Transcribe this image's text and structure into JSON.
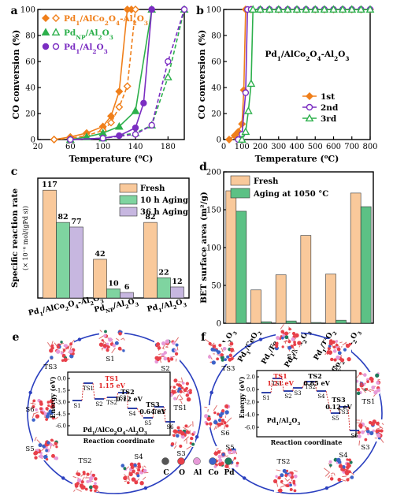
{
  "chart_data": [
    {
      "panel": "a",
      "type": "line",
      "xlabel": "Temperature (°C)",
      "ylabel": "CO conversion (%)",
      "xlim": [
        20,
        200
      ],
      "ylim": [
        0,
        100
      ],
      "xticks": [
        20,
        60,
        100,
        140,
        180
      ],
      "yticks": [
        0,
        20,
        40,
        60,
        80,
        100
      ],
      "legend": [
        {
          "name": "Pd1/AlCo2O4-Al2O3",
          "color": "#f07f1a"
        },
        {
          "name": "PdNP/Al2O3",
          "color": "#2db04c"
        },
        {
          "name": "Pd1/Al2O3",
          "color": "#7b2ec2"
        }
      ],
      "series": [
        {
          "name": "Pd1/AlCo2O4-Al2O3",
          "mode": "solid",
          "color": "#f07f1a",
          "marker": "diamond",
          "points": [
            [
              40,
              0
            ],
            [
              60,
              2
            ],
            [
              80,
              5
            ],
            [
              100,
              10
            ],
            [
              110,
              18
            ],
            [
              120,
              37
            ],
            [
              130,
              100
            ],
            [
              135,
              100
            ]
          ]
        },
        {
          "name": "Pd1/AlCo2O4-Al2O3",
          "mode": "dashed",
          "color": "#f07f1a",
          "marker": "diamond-open",
          "points": [
            [
              40,
              0
            ],
            [
              60,
              1
            ],
            [
              80,
              3
            ],
            [
              100,
              7
            ],
            [
              110,
              13
            ],
            [
              120,
              25
            ],
            [
              130,
              41
            ],
            [
              140,
              100
            ]
          ]
        },
        {
          "name": "PdNP/Al2O3",
          "mode": "solid",
          "color": "#2db04c",
          "marker": "triangle",
          "points": [
            [
              60,
              0
            ],
            [
              80,
              2
            ],
            [
              100,
              5
            ],
            [
              120,
              10
            ],
            [
              140,
              22
            ],
            [
              160,
              100
            ]
          ]
        },
        {
          "name": "PdNP/Al2O3",
          "mode": "dashed",
          "color": "#2db04c",
          "marker": "triangle-open",
          "points": [
            [
              60,
              0
            ],
            [
              100,
              1
            ],
            [
              140,
              5
            ],
            [
              160,
              11
            ],
            [
              180,
              48
            ],
            [
              200,
              100
            ]
          ]
        },
        {
          "name": "Pd1/Al2O3",
          "mode": "solid",
          "color": "#7b2ec2",
          "marker": "circle",
          "points": [
            [
              60,
              0
            ],
            [
              100,
              1
            ],
            [
              120,
              3
            ],
            [
              140,
              9
            ],
            [
              150,
              28
            ],
            [
              160,
              100
            ]
          ]
        },
        {
          "name": "Pd1/Al2O3",
          "mode": "dashed",
          "color": "#7b2ec2",
          "marker": "circle-open",
          "points": [
            [
              60,
              0
            ],
            [
              100,
              1
            ],
            [
              140,
              4
            ],
            [
              160,
              11
            ],
            [
              180,
              60
            ],
            [
              200,
              100
            ]
          ]
        }
      ]
    },
    {
      "panel": "b",
      "type": "line",
      "title": "Pd1/AlCo2O4-Al2O3",
      "xlabel": "Temperature (°C)",
      "ylabel": "CO conversion (%)",
      "xlim": [
        0,
        800
      ],
      "ylim": [
        0,
        100
      ],
      "xticks": [
        0,
        100,
        200,
        300,
        400,
        500,
        600,
        700,
        800
      ],
      "yticks": [
        0,
        20,
        40,
        60,
        80,
        100
      ],
      "legend": [
        {
          "name": "1st",
          "color": "#f07f1a"
        },
        {
          "name": "2nd",
          "color": "#7b2ec2"
        },
        {
          "name": "3rd",
          "color": "#2db04c"
        }
      ],
      "series": [
        {
          "name": "1st",
          "color": "#f07f1a",
          "marker": "diamond",
          "points": [
            [
              30,
              0
            ],
            [
              60,
              3
            ],
            [
              80,
              6
            ],
            [
              100,
              12
            ],
            [
              110,
              38
            ],
            [
              120,
              100
            ],
            [
              150,
              100
            ],
            [
              200,
              100
            ],
            [
              250,
              100
            ],
            [
              300,
              100
            ],
            [
              350,
              100
            ],
            [
              400,
              100
            ],
            [
              450,
              100
            ],
            [
              500,
              100
            ],
            [
              550,
              100
            ],
            [
              600,
              100
            ],
            [
              650,
              100
            ],
            [
              700,
              100
            ],
            [
              750,
              100
            ],
            [
              800,
              100
            ]
          ]
        },
        {
          "name": "2nd",
          "color": "#7b2ec2",
          "marker": "circle-open",
          "points": [
            [
              80,
              0
            ],
            [
              100,
              4
            ],
            [
              120,
              36
            ],
            [
              130,
              100
            ],
            [
              150,
              100
            ],
            [
              200,
              100
            ],
            [
              250,
              100
            ],
            [
              300,
              100
            ],
            [
              350,
              100
            ],
            [
              400,
              100
            ],
            [
              450,
              100
            ],
            [
              500,
              100
            ],
            [
              550,
              100
            ],
            [
              600,
              100
            ],
            [
              650,
              100
            ],
            [
              700,
              100
            ],
            [
              750,
              100
            ],
            [
              800,
              100
            ]
          ]
        },
        {
          "name": "3rd",
          "color": "#2db04c",
          "marker": "triangle-open",
          "points": [
            [
              100,
              0
            ],
            [
              120,
              6
            ],
            [
              135,
              22
            ],
            [
              150,
              43
            ],
            [
              160,
              100
            ],
            [
              200,
              100
            ],
            [
              250,
              100
            ],
            [
              300,
              100
            ],
            [
              350,
              100
            ],
            [
              400,
              100
            ],
            [
              450,
              100
            ],
            [
              500,
              100
            ],
            [
              550,
              100
            ],
            [
              600,
              100
            ],
            [
              650,
              100
            ],
            [
              700,
              100
            ],
            [
              750,
              100
            ],
            [
              800,
              100
            ]
          ]
        }
      ]
    },
    {
      "panel": "c",
      "type": "bar",
      "ylabel": "Specific reaction rate",
      "yunit": "(× 10⁻⁶ mol/(gPd s))",
      "ylim": [
        0,
        130
      ],
      "categories": [
        "Pd1/AlCo2O4-Al2O3",
        "PdNP/Al2O3",
        "Pd1/Al2O3"
      ],
      "legend": [
        "Fresh",
        "10 h Aging",
        "36 h Aging"
      ],
      "colors": [
        "#f9c99b",
        "#7fd4a0",
        "#c7b7e0"
      ],
      "series": [
        {
          "name": "Fresh",
          "values": [
            117,
            42,
            82
          ]
        },
        {
          "name": "10 h Aging",
          "values": [
            82,
            10,
            22
          ]
        },
        {
          "name": "36 h Aging",
          "values": [
            77,
            6,
            12
          ]
        }
      ]
    },
    {
      "panel": "d",
      "type": "bar",
      "ylabel": "BET surface area (m²/g)",
      "ylim": [
        0,
        200
      ],
      "yticks": [
        0,
        50,
        100,
        150,
        200
      ],
      "categories": [
        "Pd1/Al2O3",
        "Pd1/CeO2",
        "Pd1/Fe2O3",
        "Pd1/Mn2O3",
        "Pd1/TiO2",
        "Pd1/AlCo2O4-Al2O3"
      ],
      "legend": [
        "Fresh",
        "Aging at 1050 °C"
      ],
      "colors": [
        "#f9c99b",
        "#5cc185"
      ],
      "series": [
        {
          "name": "Fresh",
          "values": [
            175,
            44,
            64,
            116,
            65,
            172
          ]
        },
        {
          "name": "Aging at 1050 °C",
          "values": [
            148,
            2,
            3,
            1,
            4,
            154
          ]
        }
      ]
    }
  ],
  "panel_e": {
    "label": "e",
    "ylabel": "Energy (eV)",
    "xlabel": "Reaction coordinate",
    "caption": "Pd1/AlCo2O4-Al2O3",
    "yticks": [
      "0.0",
      "-1.5",
      "-3.0",
      "-4.5",
      "-6.0"
    ],
    "states": [
      "S1",
      "TS1",
      "S2",
      "TS2",
      "S3",
      "S4",
      "S5",
      "TS3",
      "S6"
    ],
    "barriers": [
      {
        "label": "TS1",
        "value": "1.15 eV",
        "color": "#e02020"
      },
      {
        "label": "TS2",
        "value": "0.12 eV",
        "color": "#000000"
      },
      {
        "label": "TS3",
        "value": "0.64 eV",
        "color": "#000000"
      }
    ]
  },
  "panel_f": {
    "label": "f",
    "ylabel": "Energy (eV)",
    "xlabel": "Reaction coordinate",
    "caption": "Pd1/Al2O3",
    "yticks": [
      "2.0",
      "0.0",
      "-2.0",
      "-4.0",
      "-6.0"
    ],
    "states": [
      "S1",
      "TS1",
      "S2",
      "S3",
      "TS2",
      "S4",
      "S5",
      "TS3",
      "S6"
    ],
    "barriers": [
      {
        "label": "TS1",
        "value": "1.21 eV",
        "color": "#e02020"
      },
      {
        "label": "TS2",
        "value": "0.85 eV",
        "color": "#000000"
      },
      {
        "label": "TS3",
        "value": "0.12 eV",
        "color": "#000000"
      }
    ]
  },
  "atom_legend": [
    {
      "symbol": "C",
      "color": "#555555"
    },
    {
      "symbol": "O",
      "color": "#e8404a"
    },
    {
      "symbol": "Al",
      "color": "#e79ad8"
    },
    {
      "symbol": "Co",
      "color": "#3c62c9"
    },
    {
      "symbol": "Pd",
      "color": "#1f7a5a"
    }
  ]
}
